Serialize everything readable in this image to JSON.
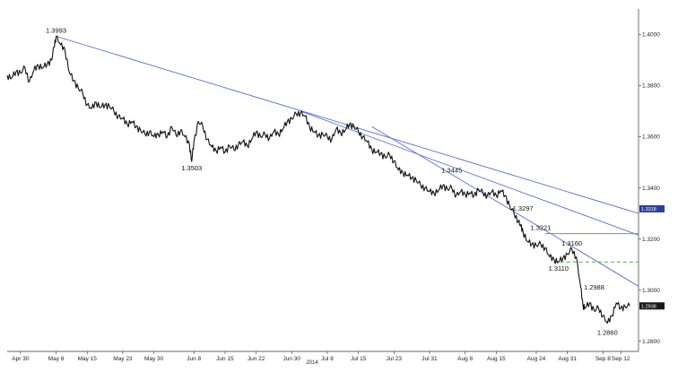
{
  "chart_data": {
    "type": "line",
    "title": "",
    "xlabel": "",
    "ylabel": "",
    "year_label": "2014",
    "ylim": [
      1.276,
      1.41
    ],
    "y_ticks": [
      "1.4000",
      "1.3800",
      "1.3600",
      "1.3400",
      "1.3200",
      "1.3000",
      "1.2800"
    ],
    "x_ticks": [
      {
        "label": "Apr 30",
        "day": 0
      },
      {
        "label": "May 8",
        "day": 8
      },
      {
        "label": "May 15",
        "day": 15
      },
      {
        "label": "May 23",
        "day": 23
      },
      {
        "label": "May 30",
        "day": 30
      },
      {
        "label": "Jun 8",
        "day": 39
      },
      {
        "label": "Jun 15",
        "day": 46
      },
      {
        "label": "Jun 22",
        "day": 53
      },
      {
        "label": "Jun 30",
        "day": 61
      },
      {
        "label": "Jul 8",
        "day": 69
      },
      {
        "label": "Jul 15",
        "day": 76
      },
      {
        "label": "Jul 23",
        "day": 84
      },
      {
        "label": "Jul 31",
        "day": 92
      },
      {
        "label": "Aug 8",
        "day": 100
      },
      {
        "label": "Aug 15",
        "day": 107
      },
      {
        "label": "Aug 24",
        "day": 116
      },
      {
        "label": "Aug 31",
        "day": 123
      },
      {
        "label": "Sep 8",
        "day": 131
      },
      {
        "label": "Sep 12",
        "day": 135
      }
    ],
    "series": [
      {
        "color": "#111111",
        "points": [
          [
            -3,
            1.384
          ],
          [
            -2,
            1.383
          ],
          [
            -1,
            1.3855
          ],
          [
            0,
            1.385
          ],
          [
            1,
            1.387
          ],
          [
            2,
            1.3815
          ],
          [
            3,
            1.386
          ],
          [
            4,
            1.388
          ],
          [
            5,
            1.387
          ],
          [
            6,
            1.3885
          ],
          [
            7,
            1.39
          ],
          [
            7.5,
            1.395
          ],
          [
            8,
            1.3993
          ],
          [
            9,
            1.396
          ],
          [
            10,
            1.394
          ],
          [
            11,
            1.385
          ],
          [
            12,
            1.382
          ],
          [
            13,
            1.379
          ],
          [
            14,
            1.377
          ],
          [
            15,
            1.3725
          ],
          [
            16,
            1.371
          ],
          [
            17,
            1.3735
          ],
          [
            18,
            1.3715
          ],
          [
            19,
            1.3725
          ],
          [
            20,
            1.372
          ],
          [
            21,
            1.37
          ],
          [
            22,
            1.368
          ],
          [
            23,
            1.367
          ],
          [
            24,
            1.365
          ],
          [
            25,
            1.366
          ],
          [
            26,
            1.364
          ],
          [
            27,
            1.3625
          ],
          [
            28,
            1.361
          ],
          [
            29,
            1.362
          ],
          [
            30,
            1.36
          ],
          [
            31,
            1.361
          ],
          [
            32,
            1.362
          ],
          [
            33,
            1.36
          ],
          [
            34,
            1.364
          ],
          [
            35,
            1.3605
          ],
          [
            36,
            1.3625
          ],
          [
            37,
            1.36
          ],
          [
            38,
            1.357
          ],
          [
            38.5,
            1.3503
          ],
          [
            39,
            1.358
          ],
          [
            40,
            1.366
          ],
          [
            41,
            1.364
          ],
          [
            42,
            1.359
          ],
          [
            43,
            1.356
          ],
          [
            44,
            1.3545
          ],
          [
            45,
            1.356
          ],
          [
            46,
            1.354
          ],
          [
            47,
            1.3565
          ],
          [
            48,
            1.355
          ],
          [
            49,
            1.357
          ],
          [
            50,
            1.358
          ],
          [
            51,
            1.3565
          ],
          [
            52,
            1.359
          ],
          [
            53,
            1.362
          ],
          [
            54,
            1.36
          ],
          [
            55,
            1.361
          ],
          [
            56,
            1.3595
          ],
          [
            57,
            1.362
          ],
          [
            58,
            1.361
          ],
          [
            59,
            1.363
          ],
          [
            60,
            1.366
          ],
          [
            61,
            1.367
          ],
          [
            62,
            1.369
          ],
          [
            63,
            1.3695
          ],
          [
            64,
            1.368
          ],
          [
            65,
            1.364
          ],
          [
            66,
            1.362
          ],
          [
            67,
            1.3605
          ],
          [
            68,
            1.361
          ],
          [
            69,
            1.36
          ],
          [
            70,
            1.359
          ],
          [
            71,
            1.363
          ],
          [
            72,
            1.3615
          ],
          [
            73,
            1.3625
          ],
          [
            74,
            1.365
          ],
          [
            75,
            1.364
          ],
          [
            76,
            1.362
          ],
          [
            77,
            1.36
          ],
          [
            78,
            1.358
          ],
          [
            79,
            1.355
          ],
          [
            80,
            1.354
          ],
          [
            81,
            1.3535
          ],
          [
            82,
            1.352
          ],
          [
            83,
            1.353
          ],
          [
            84,
            1.3505
          ],
          [
            85,
            1.347
          ],
          [
            86,
            1.346
          ],
          [
            87,
            1.345
          ],
          [
            88,
            1.344
          ],
          [
            89,
            1.343
          ],
          [
            90,
            1.341
          ],
          [
            91,
            1.34
          ],
          [
            92,
            1.3385
          ],
          [
            93,
            1.338
          ],
          [
            94,
            1.339
          ],
          [
            95,
            1.341
          ],
          [
            96,
            1.3395
          ],
          [
            97,
            1.34
          ],
          [
            98,
            1.337
          ],
          [
            99,
            1.3385
          ],
          [
            100,
            1.3375
          ],
          [
            101,
            1.338
          ],
          [
            102,
            1.337
          ],
          [
            103,
            1.3395
          ],
          [
            104,
            1.338
          ],
          [
            105,
            1.337
          ],
          [
            106,
            1.3385
          ],
          [
            107,
            1.337
          ],
          [
            108,
            1.339
          ],
          [
            109,
            1.337
          ],
          [
            110,
            1.333
          ],
          [
            111,
            1.33
          ],
          [
            112,
            1.327
          ],
          [
            112.5,
            1.325
          ],
          [
            113,
            1.323
          ],
          [
            114,
            1.319
          ],
          [
            115,
            1.318
          ],
          [
            116,
            1.3175
          ],
          [
            117,
            1.318
          ],
          [
            118,
            1.3165
          ],
          [
            119,
            1.313
          ],
          [
            120,
            1.312
          ],
          [
            121,
            1.311
          ],
          [
            122,
            1.3125
          ],
          [
            123,
            1.314
          ],
          [
            124,
            1.316
          ],
          [
            125,
            1.313
          ],
          [
            126,
            1.301
          ],
          [
            126.5,
            1.294
          ],
          [
            127,
            1.293
          ],
          [
            128,
            1.295
          ],
          [
            129,
            1.292
          ],
          [
            130,
            1.293
          ],
          [
            131,
            1.29
          ],
          [
            132,
            1.287
          ],
          [
            133,
            1.29
          ],
          [
            134,
            1.295
          ],
          [
            135,
            1.293
          ],
          [
            136,
            1.2935
          ],
          [
            137,
            1.2938
          ]
        ]
      }
    ],
    "annotations": [
      {
        "text": "1.3993",
        "x": 8,
        "y": 1.3993,
        "pos": "above"
      },
      {
        "text": "1.3503",
        "x": 38.5,
        "y": 1.3503,
        "pos": "below"
      },
      {
        "text": "1.3445",
        "x": 97,
        "y": 1.3445,
        "pos": "above"
      },
      {
        "text": "1.3297",
        "x": 113,
        "y": 1.3297,
        "pos": "above"
      },
      {
        "text": "1.3221",
        "x": 117,
        "y": 1.3221,
        "pos": "above"
      },
      {
        "text": "1.3160",
        "x": 124,
        "y": 1.316,
        "pos": "above"
      },
      {
        "text": "1.3110",
        "x": 121,
        "y": 1.311,
        "pos": "below"
      },
      {
        "text": "1.2988",
        "x": 129,
        "y": 1.2988,
        "pos": "above"
      },
      {
        "text": "1.2860",
        "x": 132,
        "y": 1.286,
        "pos": "below"
      }
    ],
    "trend_lines": [
      {
        "color": "#5570d0",
        "x1": 8,
        "y1": 1.3993,
        "x2": 139,
        "y2": 1.33
      },
      {
        "color": "#5570d0",
        "x1": 63,
        "y1": 1.37,
        "x2": 139,
        "y2": 1.3215
      },
      {
        "color": "#5570d0",
        "x1": 79,
        "y1": 1.364,
        "x2": 139,
        "y2": 1.3015
      }
    ],
    "horizontal_levels": [
      {
        "color": "#4caf50",
        "y": 1.3221,
        "x1": 118,
        "x2": 139,
        "style": "solid"
      },
      {
        "color": "#4caf50",
        "y": 1.311,
        "x1": 120,
        "x2": 139,
        "style": "dashed"
      }
    ],
    "price_tags": [
      {
        "text": "1.3318",
        "y": 1.3318,
        "color": "#2c3e9e"
      },
      {
        "text": "1.2938",
        "y": 1.2938,
        "color": "#1a1a1a"
      }
    ]
  }
}
